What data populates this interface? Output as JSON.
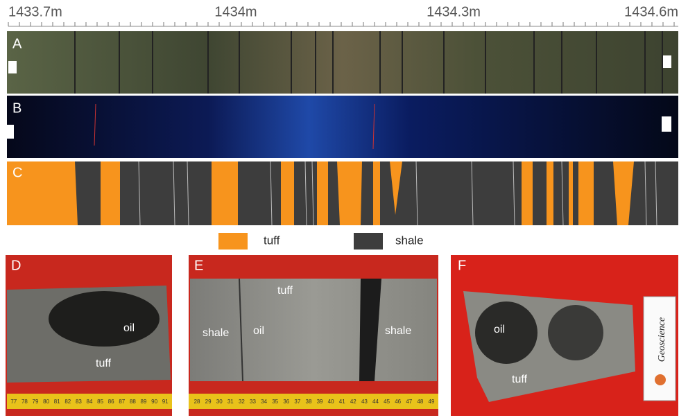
{
  "scale": {
    "labels": [
      "1433.7m",
      "1434m",
      "1434.3m",
      "1434.6m"
    ]
  },
  "panels": {
    "a": "A",
    "b": "B",
    "c": "C"
  },
  "legend": {
    "items": [
      {
        "label": "tuff"
      },
      {
        "label": "shale"
      }
    ]
  },
  "photos": {
    "d": {
      "letter": "D",
      "labels": [
        "oil",
        "tuff"
      ],
      "ruler": [
        "77",
        "78",
        "79",
        "80",
        "81",
        "82",
        "83",
        "84",
        "85",
        "86",
        "87",
        "88",
        "89",
        "90",
        "91"
      ]
    },
    "e": {
      "letter": "E",
      "labels": [
        "tuff",
        "shale",
        "oil",
        "shale"
      ],
      "ruler": [
        "28",
        "29",
        "30",
        "31",
        "32",
        "33",
        "34",
        "35",
        "36",
        "37",
        "38",
        "39",
        "40",
        "41",
        "42",
        "43",
        "44",
        "45",
        "46",
        "47",
        "48",
        "49"
      ]
    },
    "f": {
      "letter": "F",
      "labels": [
        "oil",
        "tuff",
        "Geoscience"
      ]
    }
  }
}
